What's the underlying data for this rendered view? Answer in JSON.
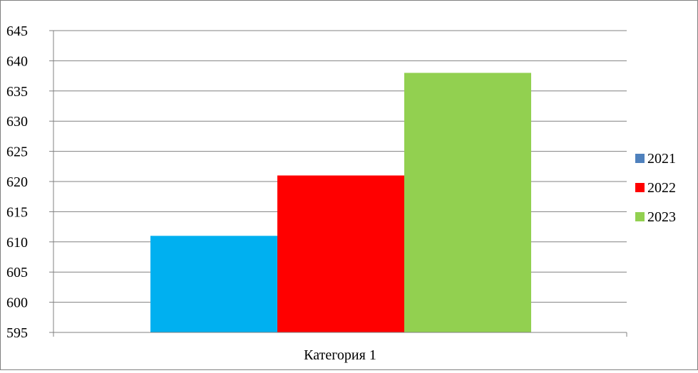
{
  "chart_data": {
    "type": "bar",
    "categories": [
      "Категория 1"
    ],
    "series": [
      {
        "name": "2021",
        "values": [
          611
        ],
        "color": "#00b0f0",
        "legend_color": "#4f81bd"
      },
      {
        "name": "2022",
        "values": [
          621
        ],
        "color": "#ff0000",
        "legend_color": "#ff0000"
      },
      {
        "name": "2023",
        "values": [
          638
        ],
        "color": "#92d050",
        "legend_color": "#92d050"
      }
    ],
    "yticks": [
      "595",
      "600",
      "605",
      "610",
      "615",
      "620",
      "625",
      "630",
      "635",
      "640",
      "645"
    ],
    "ylim": [
      595,
      645
    ],
    "grid": true,
    "legend": "right",
    "title": "",
    "xlabel": "",
    "ylabel": ""
  }
}
